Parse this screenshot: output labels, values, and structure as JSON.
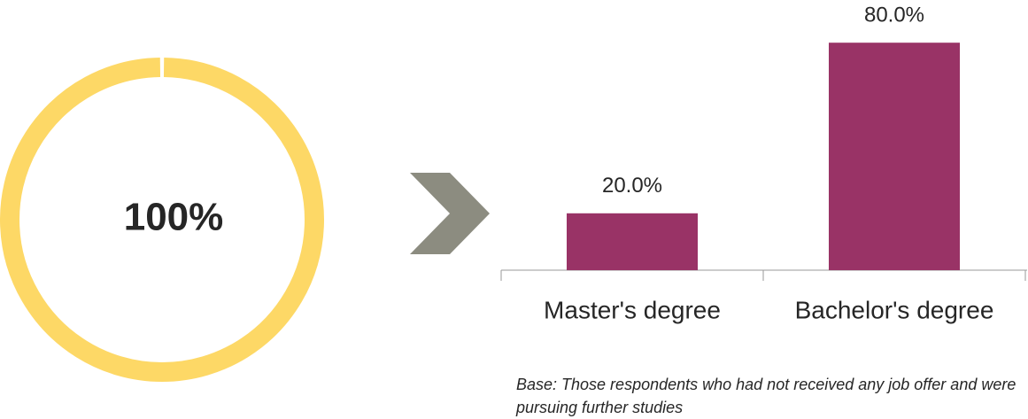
{
  "chart_data": [
    {
      "type": "donut",
      "values": [
        100
      ],
      "value_labels": [
        "100%"
      ],
      "color": "#fdd866"
    },
    {
      "type": "bar",
      "categories": [
        "Master's degree",
        "Bachelor's degree"
      ],
      "values": [
        20,
        80
      ],
      "value_labels": [
        "20.0%",
        "80.0%"
      ],
      "color": "#993366",
      "note": "Base: Those respondents who had not received any job offer and were pursuing further studies"
    }
  ]
}
